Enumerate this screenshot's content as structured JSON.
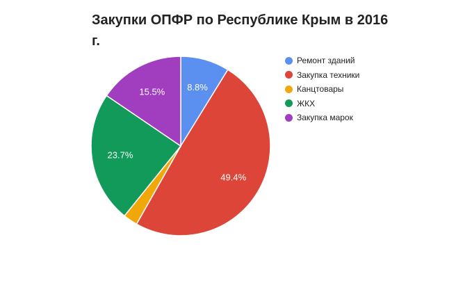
{
  "chart_data": {
    "type": "pie",
    "title": "Закупки ОПФР по Республике Крым в 2016 г.",
    "legend_position": "right",
    "slices": [
      {
        "name": "Ремонт зданий",
        "value": 8.8,
        "label": "8.8%",
        "color": "#5b8ff0"
      },
      {
        "name": "Закупка техники",
        "value": 49.4,
        "label": "49.4%",
        "color": "#dc4537"
      },
      {
        "name": "Канцтовары",
        "value": 2.6,
        "label": "",
        "color": "#f0a70a"
      },
      {
        "name": "ЖКХ",
        "value": 23.7,
        "label": "23.7%",
        "color": "#129a5a"
      },
      {
        "name": "Закупка марок",
        "value": 15.5,
        "label": "15.5%",
        "color": "#a13ec0"
      }
    ]
  }
}
